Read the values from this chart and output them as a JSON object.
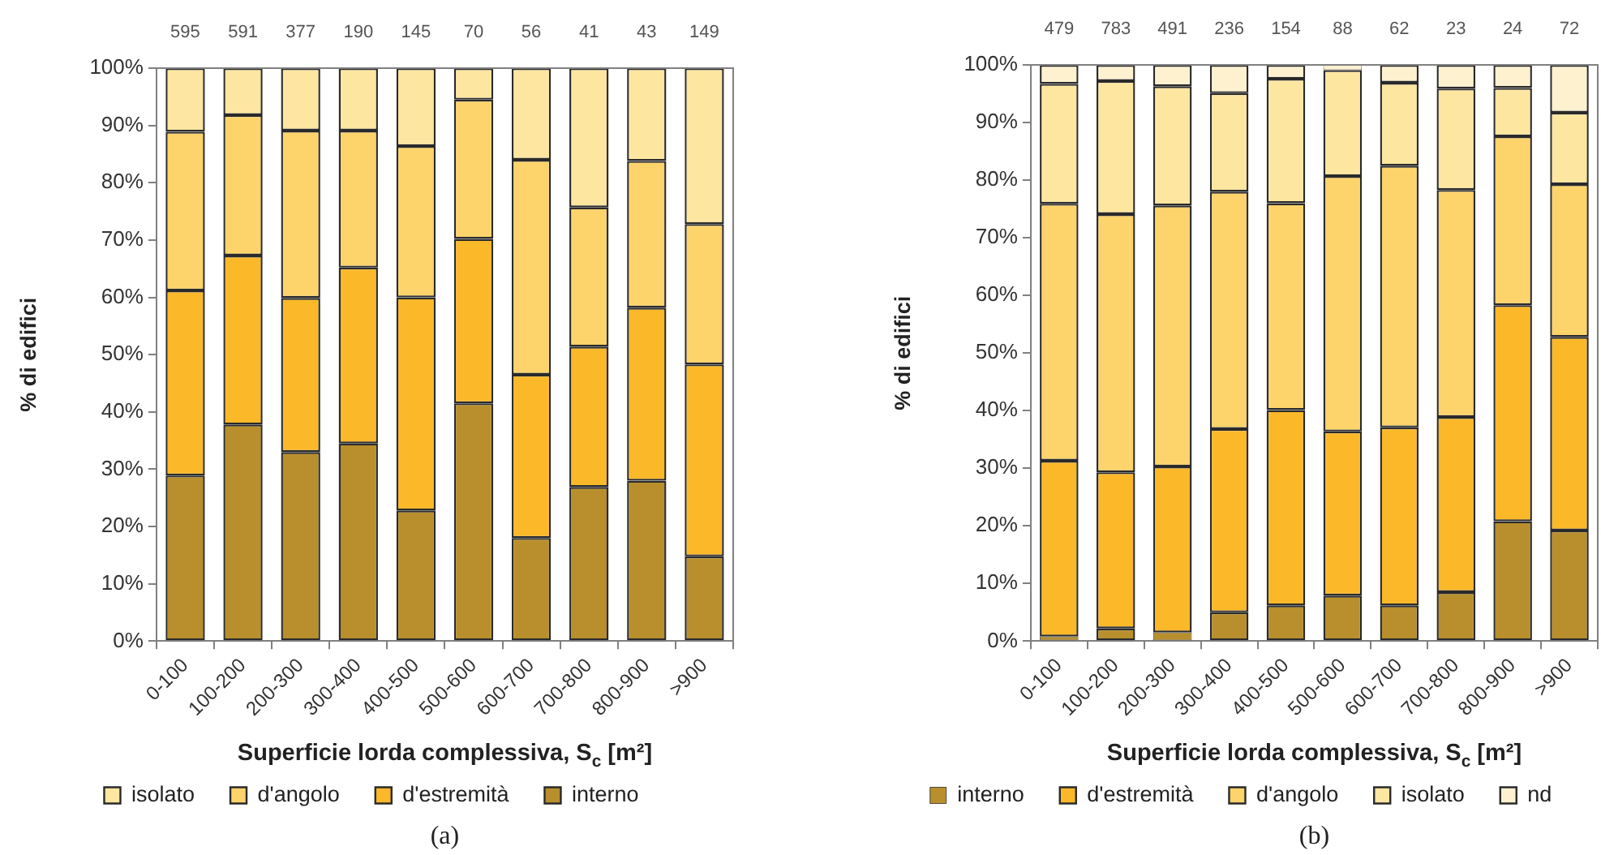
{
  "chart_data": [
    {
      "type": "bar",
      "stacked": true,
      "ylabel": "% di edifici",
      "xlabel": "Superficie lorda complessiva, S$_{c}$ [m²]",
      "categories": [
        "0-100",
        "100-200",
        "200-300",
        "300-400",
        "400-500",
        "500-600",
        "600-700",
        "700-800",
        "800-900",
        ">900"
      ],
      "series": [
        {
          "name": "interno",
          "color": "#b88f2c",
          "values": [
            28.9,
            37.8,
            33.0,
            34.5,
            22.8,
            41.5,
            18.0,
            26.9,
            28.0,
            14.8
          ]
        },
        {
          "name": "d'estremità",
          "color": "#fbb829",
          "values": [
            32.3,
            29.5,
            26.9,
            30.7,
            37.2,
            28.7,
            28.5,
            24.5,
            30.2,
            33.5
          ]
        },
        {
          "name": "d'angolo",
          "color": "#fdd36b",
          "values": [
            27.7,
            24.5,
            29.2,
            23.9,
            26.4,
            24.3,
            37.5,
            24.3,
            25.6,
            24.5
          ]
        },
        {
          "name": "isolato",
          "color": "#fde6a0",
          "values": [
            11.1,
            8.2,
            10.9,
            10.9,
            13.6,
            5.5,
            16.0,
            24.3,
            16.2,
            27.2
          ]
        }
      ],
      "ylim": [
        0,
        100
      ],
      "yticks": [
        {
          "value": 0,
          "label": "0%"
        },
        {
          "value": 10,
          "label": "10%"
        },
        {
          "value": 20,
          "label": "20%"
        },
        {
          "value": 30,
          "label": "30%"
        },
        {
          "value": 40,
          "label": "40%"
        },
        {
          "value": 50,
          "label": "50%"
        },
        {
          "value": 60,
          "label": "60%"
        },
        {
          "value": 70,
          "label": "70%"
        },
        {
          "value": 80,
          "label": "80%"
        },
        {
          "value": 90,
          "label": "90%"
        },
        {
          "value": 100,
          "label": "100%"
        }
      ],
      "grid": false,
      "legend": "bottom",
      "annotations": [
        "595",
        "591",
        "377",
        "190",
        "145",
        "70",
        "56",
        "41",
        "43",
        "149",
        "(a)"
      ]
    },
    {
      "type": "bar",
      "stacked": true,
      "ylabel": "% di edifici",
      "xlabel": "Superficie lorda complessiva, S$_{c}$ [m²]",
      "categories": [
        "0-100",
        "100-200",
        "200-300",
        "300-400",
        "400-500",
        "500-600",
        "600-700",
        "700-800",
        "800-900",
        ">900"
      ],
      "series": [
        {
          "name": "interno",
          "color": "#b88f2c",
          "values": [
            0.8,
            2.2,
            1.5,
            5.0,
            6.2,
            7.9,
            6.2,
            8.5,
            20.8,
            19.2
          ]
        },
        {
          "name": "d'estremità",
          "color": "#fbb829",
          "values": [
            30.5,
            27.1,
            28.8,
            31.8,
            33.9,
            28.5,
            30.9,
            30.4,
            37.5,
            33.6
          ]
        },
        {
          "name": "d'angolo",
          "color": "#fdd36b",
          "values": [
            44.6,
            44.8,
            45.3,
            41.2,
            35.9,
            44.3,
            45.4,
            39.4,
            29.3,
            26.5
          ]
        },
        {
          "name": "isolato",
          "color": "#fde6a0",
          "values": [
            20.8,
            23.1,
            20.7,
            17.1,
            21.6,
            18.4,
            14.4,
            17.6,
            8.4,
            12.4
          ]
        },
        {
          "name": "nd",
          "color": "#fdf1d0",
          "values": [
            3.3,
            2.8,
            3.7,
            4.9,
            2.4,
            0.9,
            3.1,
            4.1,
            4.0,
            8.3
          ]
        }
      ],
      "ylim": [
        0,
        100
      ],
      "yticks": [
        {
          "value": 0,
          "label": "0%"
        },
        {
          "value": 10,
          "label": "10%"
        },
        {
          "value": 20,
          "label": "20%"
        },
        {
          "value": 30,
          "label": "30%"
        },
        {
          "value": 40,
          "label": "40%"
        },
        {
          "value": 50,
          "label": "50%"
        },
        {
          "value": 60,
          "label": "60%"
        },
        {
          "value": 70,
          "label": "70%"
        },
        {
          "value": 80,
          "label": "80%"
        },
        {
          "value": 90,
          "label": "90%"
        },
        {
          "value": 100,
          "label": "100%"
        }
      ],
      "grid": false,
      "legend": "bottom",
      "annotations": [
        "479",
        "783",
        "491",
        "236",
        "154",
        "88",
        "62",
        "23",
        "24",
        "72",
        "(b)"
      ]
    }
  ]
}
